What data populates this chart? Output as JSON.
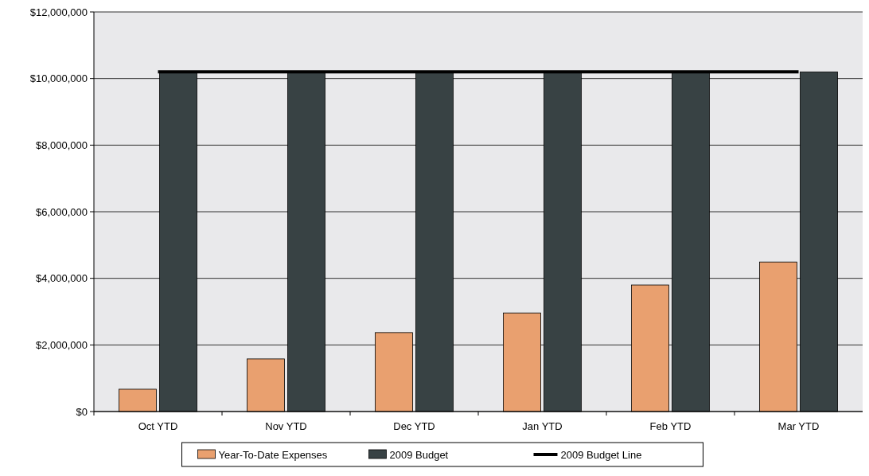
{
  "chart_data": {
    "type": "bar",
    "categories": [
      "Oct YTD",
      "Nov YTD",
      "Dec YTD",
      "Jan YTD",
      "Feb YTD",
      "Mar YTD"
    ],
    "series": [
      {
        "name": "Year-To-Date Expenses",
        "color": "#e9a06f",
        "values": [
          670000,
          1580000,
          2370000,
          2960000,
          3800000,
          4490000
        ]
      },
      {
        "name": "2009 Budget",
        "color": "#384244",
        "values": [
          10200000,
          10200000,
          10200000,
          10200000,
          10200000,
          10200000
        ]
      },
      {
        "name": "2009 Budget Line",
        "type": "line",
        "color": "#000000",
        "values": [
          10200000,
          10200000,
          10200000,
          10200000,
          10200000,
          10200000
        ]
      }
    ],
    "ylim": [
      0,
      12000000
    ],
    "yticks": [
      {
        "value": 0,
        "label": "$0"
      },
      {
        "value": 2000000,
        "label": "$2,000,000"
      },
      {
        "value": 4000000,
        "label": "$4,000,000"
      },
      {
        "value": 6000000,
        "label": "$6,000,000"
      },
      {
        "value": 8000000,
        "label": "$8,000,000"
      },
      {
        "value": 10000000,
        "label": "$10,000,000"
      },
      {
        "value": 12000000,
        "label": "$12,000,000"
      }
    ],
    "grid": "y",
    "legend": "bottom",
    "line_style": "solid"
  }
}
